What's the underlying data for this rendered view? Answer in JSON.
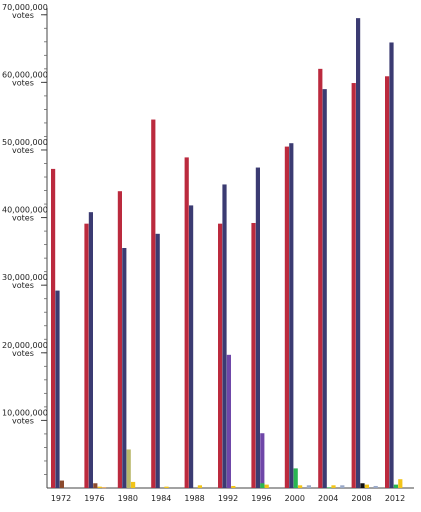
{
  "chart_data": {
    "type": "bar",
    "categories": [
      "1972",
      "1976",
      "1980",
      "1984",
      "1988",
      "1992",
      "1996",
      "2000",
      "2004",
      "2008",
      "2012"
    ],
    "ylim": [
      0,
      71000000
    ],
    "y_tick_values": [
      10000000,
      20000000,
      30000000,
      40000000,
      50000000,
      60000000,
      70000000
    ],
    "y_tick_labels": [
      [
        "10,000,000",
        "votes"
      ],
      [
        "20,000,000",
        "votes"
      ],
      [
        "30,000,000",
        "votes"
      ],
      [
        "40,000,000",
        "votes"
      ],
      [
        "50,000,000",
        "votes"
      ],
      [
        "60,000,000",
        "votes"
      ],
      [
        "70,000,000",
        "votes"
      ]
    ],
    "minor_tick_step": 2000000,
    "grid": false,
    "series": [
      {
        "color": "#bb2a3e",
        "values": [
          47200000,
          39100000,
          43900000,
          54500000,
          48900000,
          39100000,
          39200000,
          50500000,
          62000000,
          59900000,
          60900000
        ]
      },
      {
        "color": "#3b3b72",
        "values": [
          29200000,
          40800000,
          35500000,
          37600000,
          41800000,
          44900000,
          47400000,
          51000000,
          59000000,
          69500000,
          65900000
        ]
      },
      {
        "color": "#6f47a8",
        "values": [
          0,
          0,
          0,
          0,
          0,
          19700000,
          8100000,
          0,
          0,
          0,
          0
        ]
      },
      {
        "color": "#b9b86a",
        "values": [
          0,
          0,
          5700000,
          0,
          0,
          0,
          0,
          0,
          0,
          0,
          0
        ]
      },
      {
        "color": "#2ab552",
        "values": [
          0,
          0,
          0,
          0,
          0,
          0,
          700000,
          2900000,
          100000,
          0,
          500000
        ]
      },
      {
        "color": "#111111",
        "values": [
          0,
          0,
          0,
          0,
          0,
          0,
          0,
          0,
          0,
          700000,
          0
        ]
      },
      {
        "color": "#8b4a2e",
        "values": [
          1100000,
          700000,
          0,
          0,
          0,
          0,
          0,
          0,
          0,
          0,
          0
        ]
      },
      {
        "color": "#f2c418",
        "values": [
          0,
          200000,
          900000,
          200000,
          400000,
          300000,
          500000,
          400000,
          400000,
          500000,
          1300000
        ]
      },
      {
        "color": "#d98a2e",
        "values": [
          0,
          100000,
          0,
          0,
          0,
          0,
          0,
          0,
          0,
          0,
          0
        ]
      },
      {
        "color": "#9aa9c8",
        "values": [
          0,
          0,
          0,
          0,
          0,
          0,
          0,
          400000,
          400000,
          300000,
          0
        ]
      }
    ]
  }
}
